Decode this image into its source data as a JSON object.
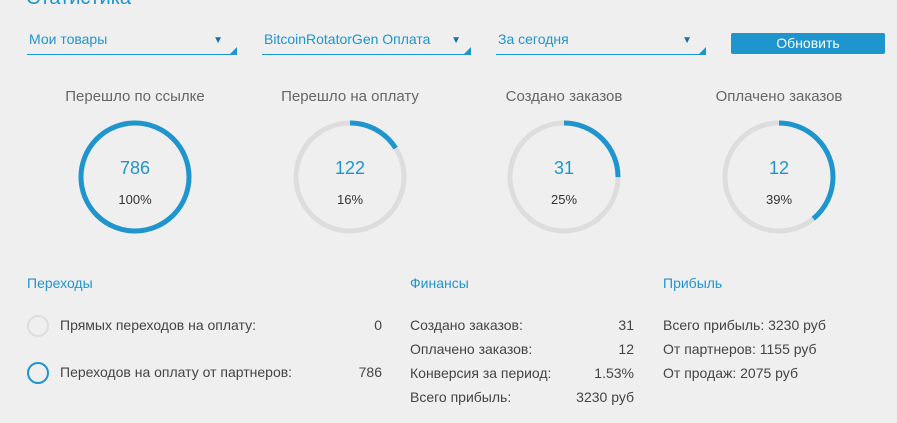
{
  "page": {
    "title": "Статистика"
  },
  "filters": {
    "products": {
      "value": "Мои товары"
    },
    "product": {
      "value": "BitcoinRotatorGen Оплата"
    },
    "period": {
      "value": "За сегодня"
    },
    "refresh_label": "Обновить"
  },
  "stats": [
    {
      "label": "Перешло по ссылке",
      "value": "786",
      "percent_label": "100%",
      "percent": 100
    },
    {
      "label": "Перешло на оплату",
      "value": "122",
      "percent_label": "16%",
      "percent": 16
    },
    {
      "label": "Создано заказов",
      "value": "31",
      "percent_label": "25%",
      "percent": 25
    },
    {
      "label": "Оплачено заказов",
      "value": "12",
      "percent_label": "39%",
      "percent": 39
    }
  ],
  "transitions": {
    "title": "Переходы",
    "rows": [
      {
        "label": "Прямых переходов на оплату:",
        "value": "0",
        "share": 0
      },
      {
        "label": "Переходов на оплату от партнеров:",
        "value": "786",
        "share": 100
      }
    ]
  },
  "finance": {
    "title": "Финансы",
    "rows": [
      {
        "label": "Создано заказов:",
        "value": "31"
      },
      {
        "label": "Оплачено заказов:",
        "value": "12"
      },
      {
        "label": "Конверсия за период:",
        "value": "1.53%"
      },
      {
        "label": "Всего прибыль:",
        "value": "3230 руб"
      }
    ]
  },
  "profit": {
    "title": "Прибыль",
    "rows": [
      {
        "text": "Всего прибыль: 3230 руб"
      },
      {
        "text": "От партнеров: 1155 руб"
      },
      {
        "text": "От продаж: 2075 руб"
      }
    ]
  },
  "colors": {
    "accent": "#1e95cd",
    "track": "#dddddd",
    "background": "#efefef"
  }
}
